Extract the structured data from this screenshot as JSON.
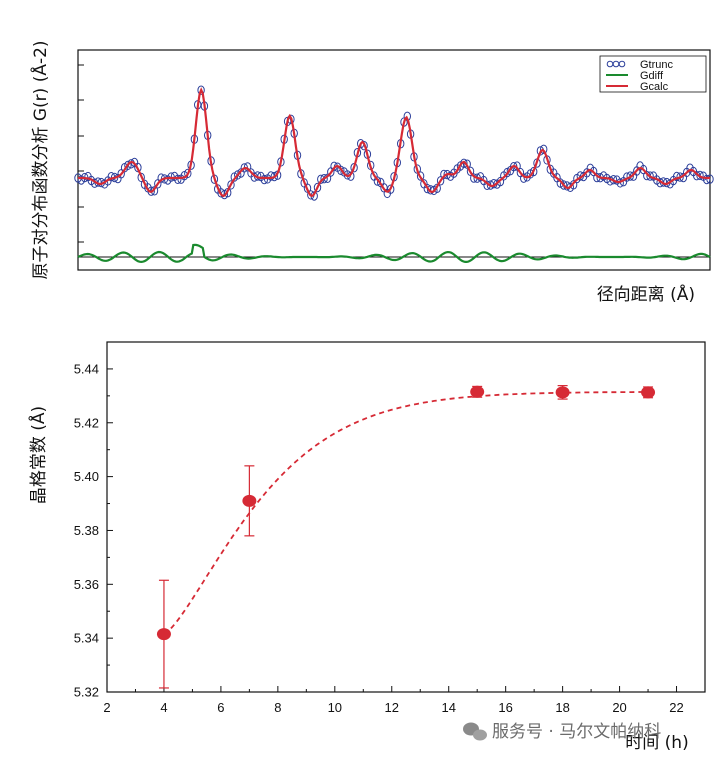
{
  "colors": {
    "gtrunc": "#2b3e9a",
    "gdiff": "#1a8a2e",
    "gcalc": "#d62a35",
    "fit_line": "#d62a35",
    "point": "#d62a35",
    "axis": "#111111",
    "watermark": "#6b6b6b"
  },
  "watermark": {
    "icon": "wechat-icon",
    "text": "服务号 · 马尔文帕纳科"
  },
  "chart_data": [
    {
      "type": "line",
      "title": "",
      "xlabel": "径向距离 (Å)",
      "ylabel": "原子对分布函数分析 G(r) (Å-2)",
      "x_ticks_shown": false,
      "y_ticks_shown": false,
      "legend": {
        "placement": "top-right",
        "entries": [
          "Gtrunc",
          "Gdiff",
          "Gcalc"
        ]
      },
      "series": [
        {
          "name": "Gtrunc",
          "style": "open-circles"
        },
        {
          "name": "Gdiff",
          "style": "line"
        },
        {
          "name": "Gcalc",
          "style": "line"
        }
      ]
    },
    {
      "type": "scatter",
      "title": "",
      "xlabel": "时间 (h)",
      "ylabel": "晶格常数 (Å)",
      "xlim": [
        2,
        23
      ],
      "ylim": [
        5.32,
        5.45
      ],
      "x_ticks": [
        "2",
        "4",
        "6",
        "8",
        "10",
        "12",
        "14",
        "16",
        "18",
        "20",
        "22"
      ],
      "y_ticks": [
        "5.32",
        "5.34",
        "5.36",
        "5.38",
        "5.40",
        "5.42",
        "5.44"
      ],
      "grid": false,
      "series": [
        {
          "x": [
            4,
            7,
            15,
            18,
            21
          ],
          "y": [
            5.3415,
            5.391,
            5.4315,
            5.4313,
            5.4313
          ],
          "error": [
            0.02,
            0.013,
            0.002,
            0.0025,
            0.002
          ]
        }
      ],
      "fit_line": "dashed"
    }
  ]
}
